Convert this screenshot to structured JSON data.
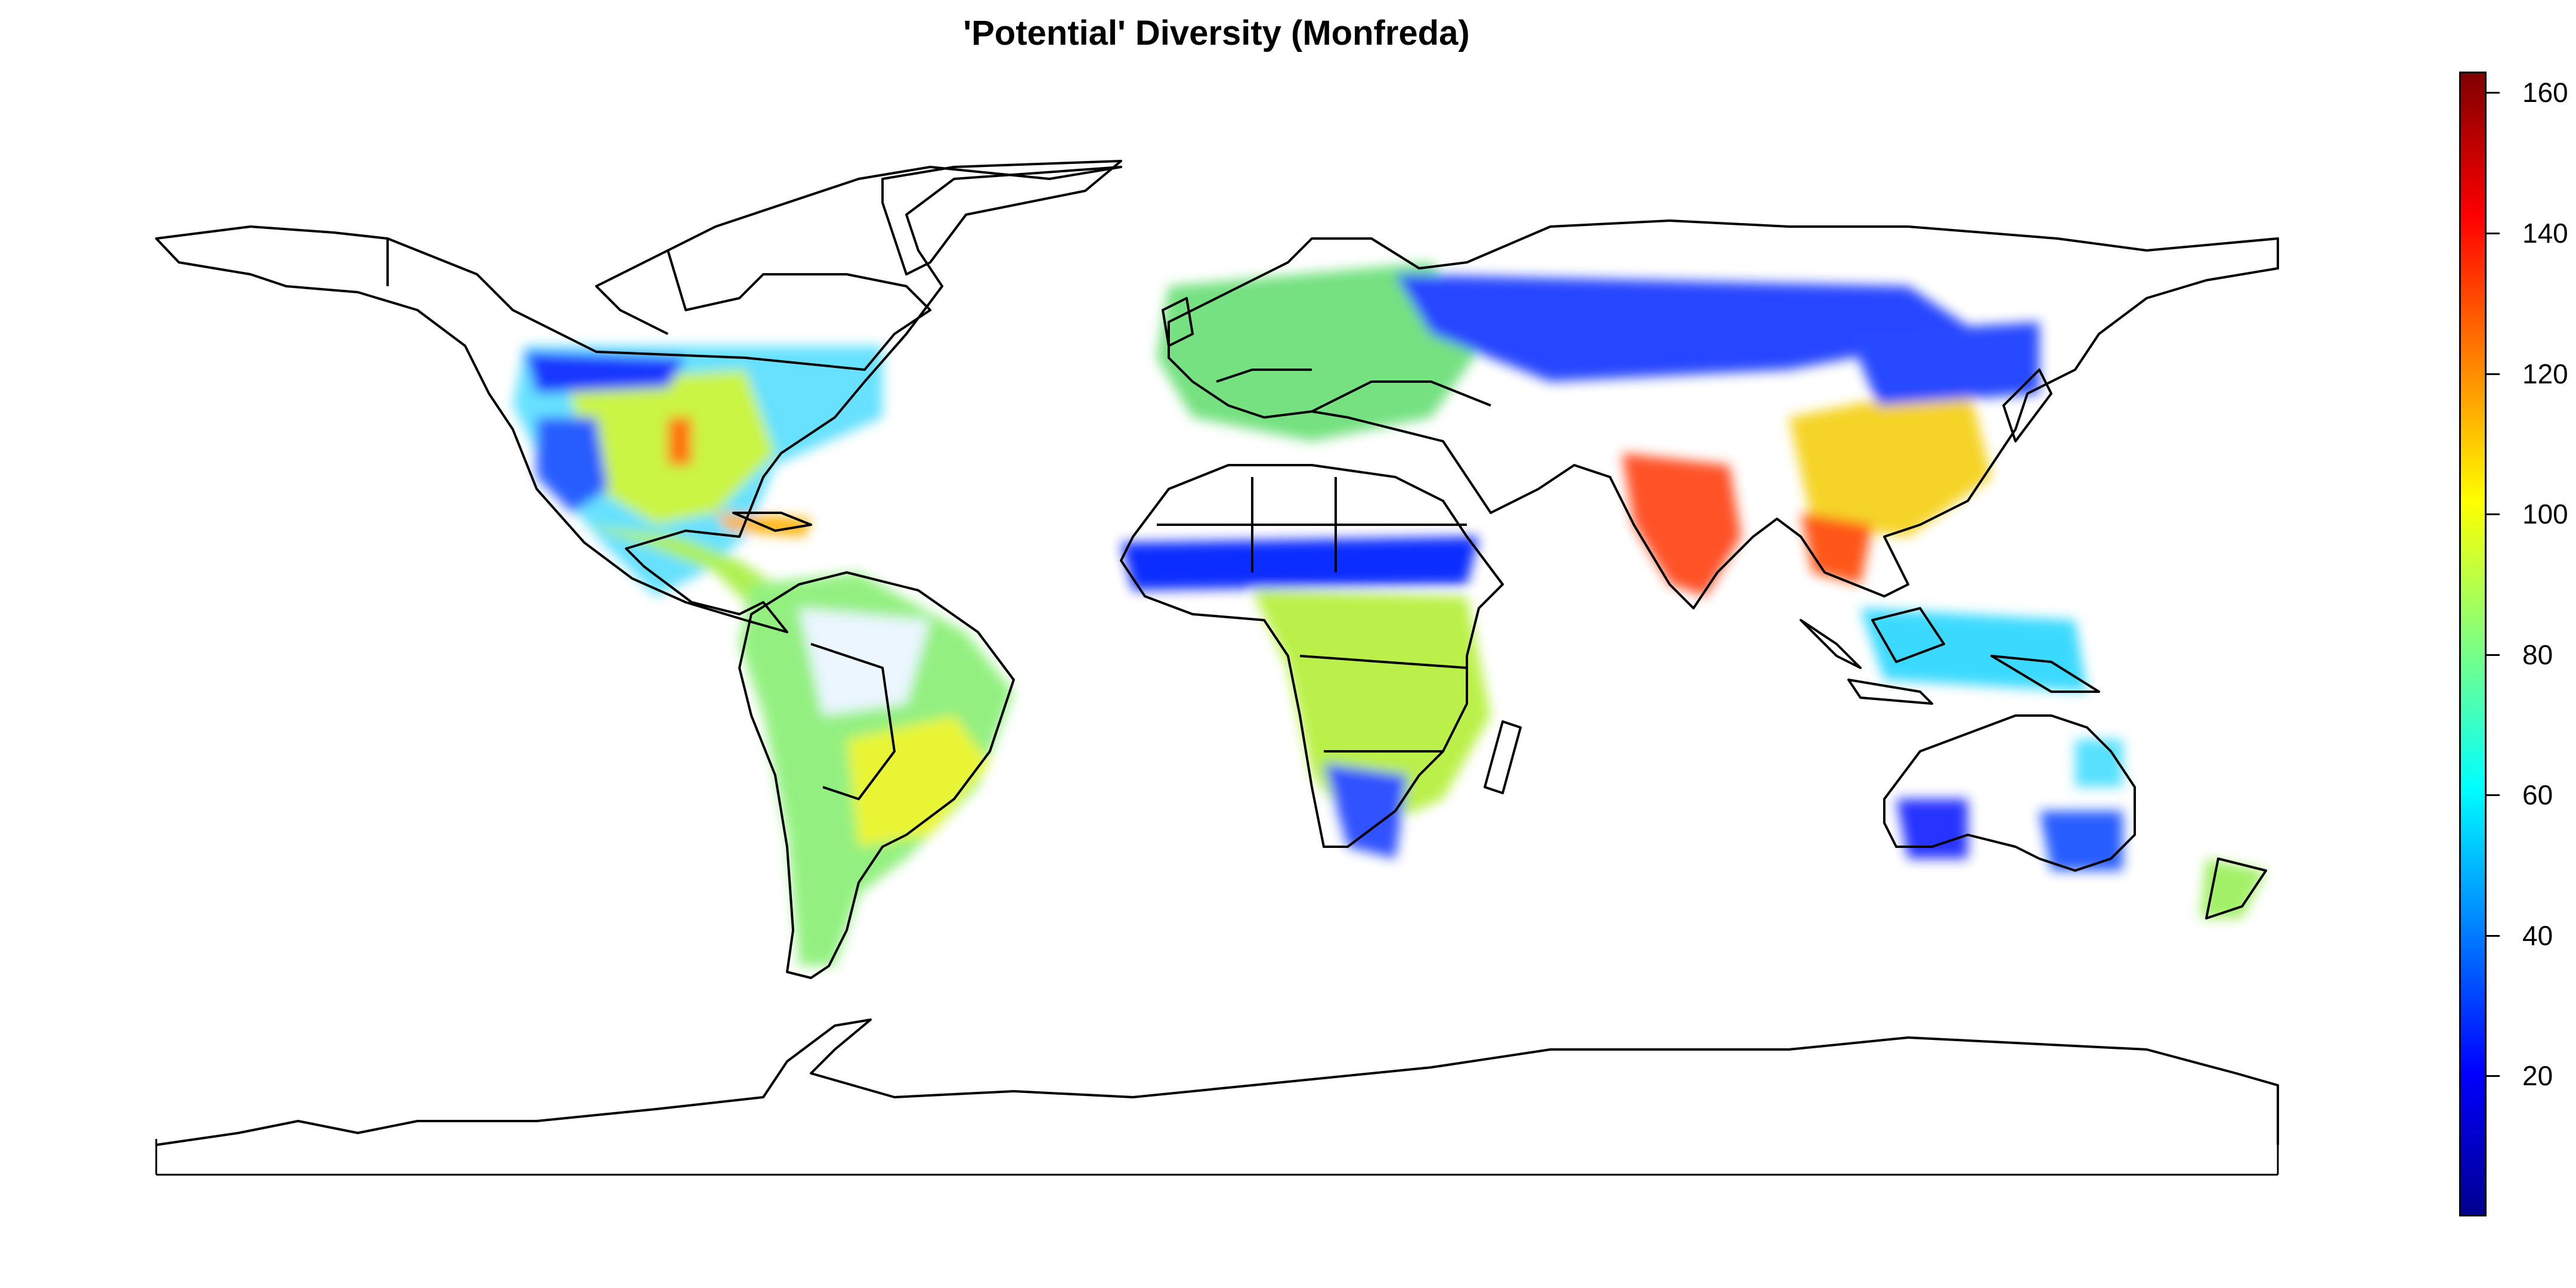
{
  "title": "'Potential' Diversity (Monfreda)",
  "legend": {
    "min": 0,
    "max": 163,
    "ticks": [
      "20",
      "40",
      "60",
      "80",
      "100",
      "120",
      "140",
      "160"
    ],
    "colors": [
      "#00008f",
      "#0000ff",
      "#0080ff",
      "#00ffff",
      "#80ff80",
      "#ffff00",
      "#ff8000",
      "#ff0000",
      "#800000"
    ]
  }
}
